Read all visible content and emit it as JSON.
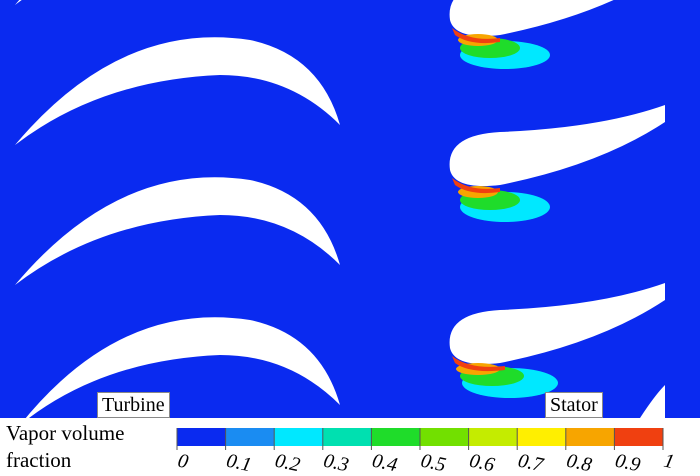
{
  "labels": {
    "turbine": "Turbine",
    "stator": "Stator"
  },
  "colorbar": {
    "title": "Vapor volume fraction",
    "ticks": [
      0,
      0.1,
      0.2,
      0.3,
      0.4,
      0.5,
      0.6,
      0.7,
      0.8,
      0.9,
      1
    ],
    "colors": [
      "#0a2af0",
      "#1a8cf2",
      "#00e8ff",
      "#00e0b0",
      "#1fdc2a",
      "#72e000",
      "#c4ec00",
      "#ffef00",
      "#f7a500",
      "#f04010"
    ]
  }
}
